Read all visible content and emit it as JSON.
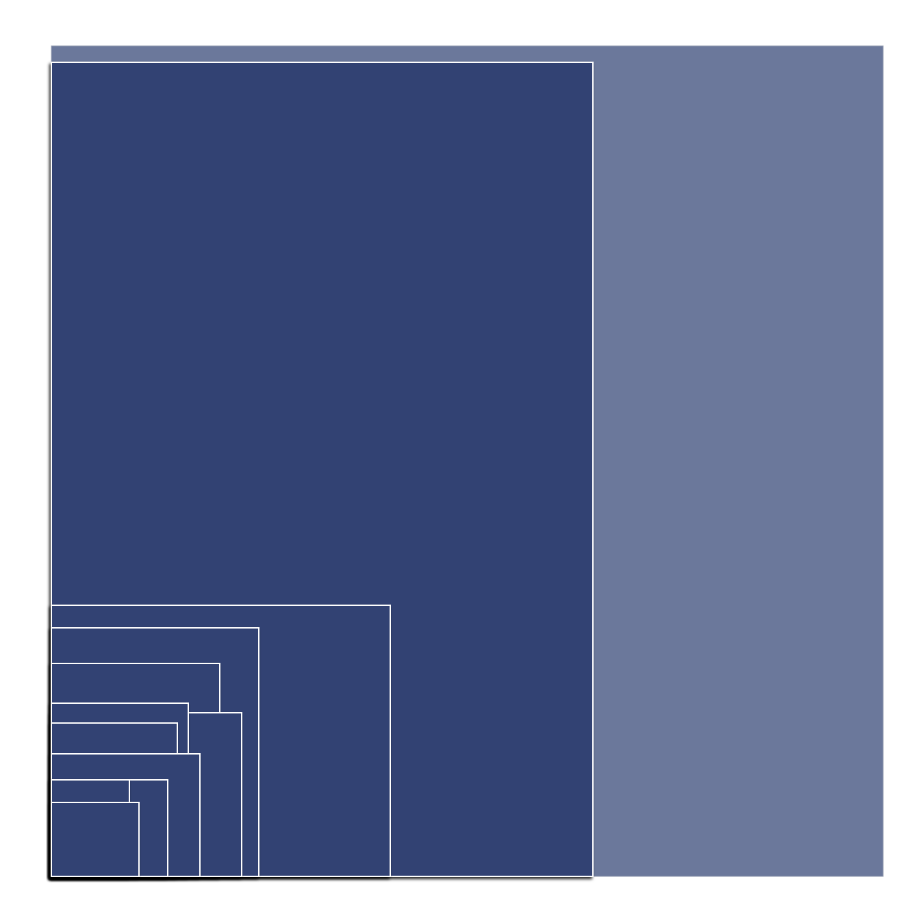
{
  "diagram": {
    "type": "nested-rectangles",
    "style": {
      "background_fill": "#6b789b",
      "rect_fill": "#314373",
      "rect_stroke": "#ffffff",
      "shadow_color": "#000000"
    },
    "rectangles": [
      {
        "id": "rect-outer-panel"
      },
      {
        "id": "rect-1"
      },
      {
        "id": "rect-2"
      },
      {
        "id": "rect-3"
      },
      {
        "id": "rect-4"
      },
      {
        "id": "rect-5"
      },
      {
        "id": "rect-6"
      },
      {
        "id": "rect-7"
      },
      {
        "id": "rect-8"
      },
      {
        "id": "rect-9"
      },
      {
        "id": "rect-10"
      },
      {
        "id": "rect-11"
      }
    ]
  }
}
